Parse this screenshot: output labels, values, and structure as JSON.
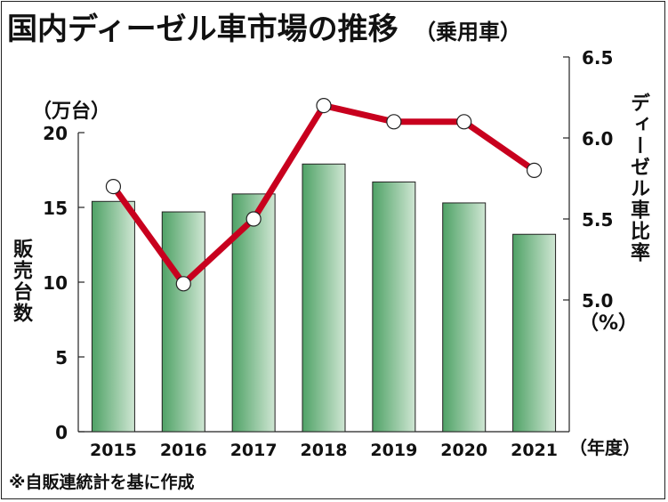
{
  "chart_data": {
    "type": "bar+line",
    "title": "国内ディーゼル車市場の推移",
    "subtitle": "（乗用車）",
    "categories": [
      "2015",
      "2016",
      "2017",
      "2018",
      "2019",
      "2020",
      "2021"
    ],
    "x_unit": "（年度）",
    "left_axis": {
      "label": "販売台数",
      "unit": "（万台）",
      "range": [
        0,
        20
      ],
      "ticks": [
        "0",
        "5",
        "10",
        "15",
        "20"
      ]
    },
    "right_axis": {
      "label": "ディーゼル車比率",
      "unit": "（%）",
      "range": [
        5.0,
        6.5
      ],
      "ticks": [
        "5.0",
        "5.5",
        "6.0",
        "6.5"
      ]
    },
    "series": [
      {
        "name": "販売台数",
        "type": "bar",
        "axis": "left",
        "values": [
          15.4,
          14.7,
          15.9,
          17.9,
          16.7,
          15.3,
          13.2
        ],
        "color": "#5aa86e"
      },
      {
        "name": "ディーゼル車比率",
        "type": "line",
        "axis": "right",
        "values": [
          5.7,
          5.1,
          5.5,
          6.2,
          6.1,
          6.1,
          5.8
        ],
        "color": "#c8001e"
      }
    ],
    "note": "※自販連統計を基に作成"
  }
}
